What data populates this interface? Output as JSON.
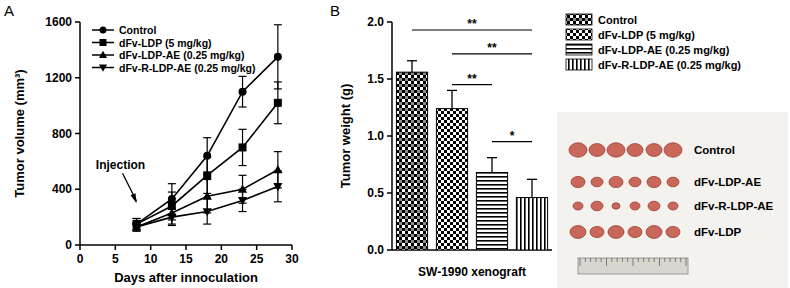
{
  "chart_data": [
    {
      "type": "line",
      "title": "A",
      "x_label": "Days after innoculation",
      "y_label": "Tumor volume (mm³)",
      "x": [
        8,
        13,
        18,
        23,
        28
      ],
      "series": [
        {
          "name": "Control",
          "color": "#000000",
          "marker": "circle",
          "line_style": "solid",
          "values": [
            150,
            330,
            640,
            1100,
            1350
          ],
          "errors": [
            40,
            110,
            130,
            110,
            230
          ]
        },
        {
          "name": "dFv-LDP (5 mg/kg)",
          "color": "#000000",
          "marker": "square",
          "line_style": "solid",
          "values": [
            150,
            280,
            500,
            700,
            1020
          ],
          "errors": [
            40,
            100,
            130,
            130,
            150
          ]
        },
        {
          "name": "dFv-LDP-AE (0.25 mg/kg)",
          "color": "#000000",
          "marker": "triangle",
          "line_style": "solid",
          "values": [
            130,
            230,
            350,
            400,
            540
          ],
          "errors": [
            30,
            80,
            120,
            100,
            130
          ]
        },
        {
          "name": "dFv-R-LDP-AE (0.25 mg/kg)",
          "color": "#000000",
          "marker": "triangle-down",
          "line_style": "solid",
          "values": [
            130,
            200,
            240,
            320,
            420
          ],
          "errors": [
            30,
            60,
            90,
            80,
            110
          ]
        }
      ],
      "xlim": [
        0,
        30
      ],
      "xticks": [
        0,
        5,
        10,
        15,
        20,
        25,
        30
      ],
      "ylim": [
        0,
        1600
      ],
      "yticks": [
        0,
        400,
        800,
        1200,
        1600
      ],
      "legend": "upper left",
      "grid": false,
      "annotations": [
        {
          "text": "Injection",
          "x": 8,
          "y": 300
        }
      ]
    },
    {
      "type": "bar",
      "title": "B",
      "x_label": "SW-1990 xenograft",
      "y_label": "Tumor weight (g)",
      "categories": [
        "Control",
        "dFv-LDP (5 mg/kg)",
        "dFv-LDP-AE (0.25 mg/kg)",
        "dFv-R-LDP-AE (0.25 mg/kg)"
      ],
      "values": [
        1.56,
        1.24,
        0.68,
        0.46
      ],
      "errors": [
        0.1,
        0.16,
        0.13,
        0.16
      ],
      "color": "#000000",
      "ylim": [
        0,
        2
      ],
      "yticks": [
        {
          "value": 0,
          "label": "0.0"
        },
        {
          "value": 0.5,
          "label": "0.5"
        },
        {
          "value": 1,
          "label": "1.0"
        },
        {
          "value": 1.5,
          "label": "1.5"
        },
        {
          "value": 2,
          "label": "2.0"
        }
      ],
      "tick_labels": "y",
      "legend": "right",
      "grid": false,
      "annotations": [
        {
          "text": "**",
          "from": 0,
          "to": 3,
          "y": 1.93
        },
        {
          "text": "**",
          "from": 1,
          "to": 3,
          "y": 1.72
        },
        {
          "text": "**",
          "from": 1,
          "to": 2,
          "y": 1.45
        },
        {
          "text": "*",
          "from": 2,
          "to": 3,
          "y": 0.95
        }
      ]
    }
  ],
  "photo": {
    "labels": [
      "Control",
      "dFv-LDP-AE",
      "dFv-R-LDP-AE",
      "dFv-LDP"
    ]
  }
}
